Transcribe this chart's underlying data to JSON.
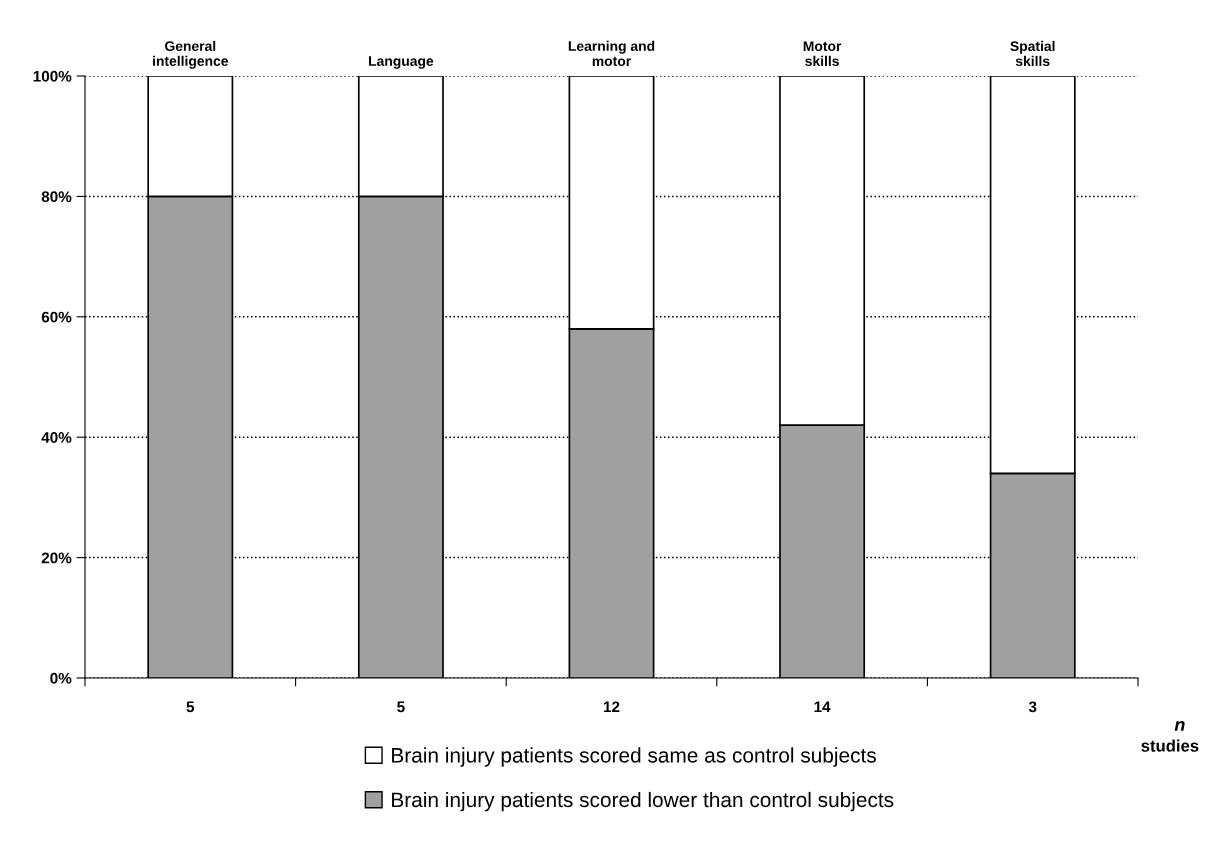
{
  "chart_data": {
    "type": "bar",
    "stacked": true,
    "categories": [
      "General\nintelligence",
      "Language",
      "Learning and\nmotor",
      "Motor\nskills",
      "Spatial\nskills"
    ],
    "series": [
      {
        "name": "Brain injury patients scored lower than control subjects",
        "color": "#a0a0a0",
        "values": [
          80,
          80,
          58,
          42,
          34
        ]
      },
      {
        "name": "Brain injury patients scored same as control subjects",
        "color": "#ffffff",
        "values": [
          20,
          20,
          42,
          58,
          66
        ]
      }
    ],
    "ylim": [
      0,
      100
    ],
    "yticks": [
      {
        "value": 0,
        "label": "0%"
      },
      {
        "value": 20,
        "label": "20%"
      },
      {
        "value": 40,
        "label": "40%"
      },
      {
        "value": 60,
        "label": "60%"
      },
      {
        "value": 80,
        "label": "80%"
      },
      {
        "value": 100,
        "label": "100%"
      }
    ],
    "xlabel": "n\nstudies",
    "annotations": [
      "5",
      "5",
      "12",
      "14",
      "3"
    ],
    "grid": "y",
    "line_style": "dotted",
    "legend": "bottom"
  }
}
